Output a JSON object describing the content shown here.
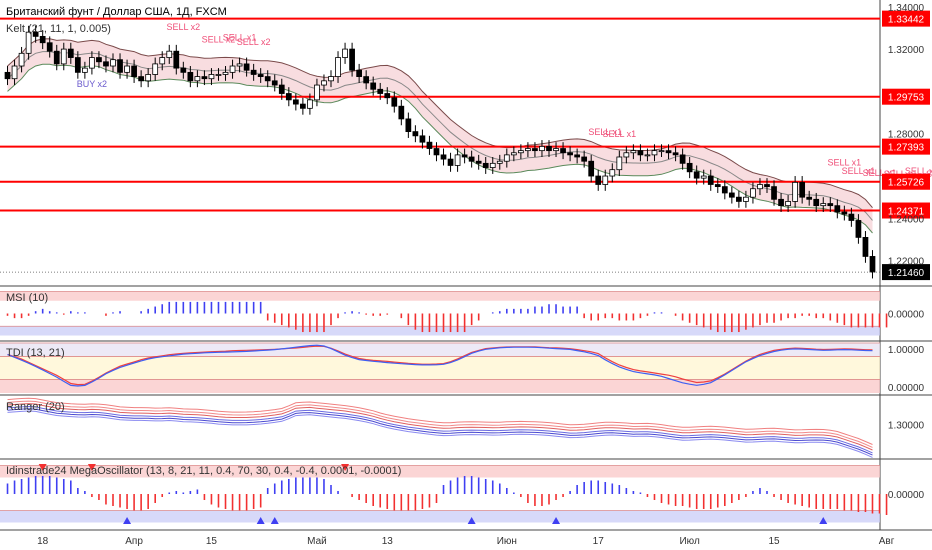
{
  "header": {
    "symbol_title": "Британский фунт / Доллар США, 1Д, FXCM",
    "indicator": "Kelt (21, 11, 1, 0.005)"
  },
  "colors": {
    "up_candle": "#ffffff",
    "down_candle": "#000000",
    "level_line": "#ff0000",
    "price_label_bg": "#000000",
    "signal_sell": "#ef4f78",
    "signal_buy": "#6a5acd",
    "bull_bar": "#3f3ff2",
    "bear_bar": "#f23030",
    "red_zone": "#f9c7c7",
    "blue_zone": "#c9ccf7",
    "yellow_zone": "#fff6d0"
  },
  "time_axis": {
    "labels": [
      {
        "text": "18",
        "bar": 5
      },
      {
        "text": "Апр",
        "bar": 18
      },
      {
        "text": "15",
        "bar": 29
      },
      {
        "text": "Май",
        "bar": 44
      },
      {
        "text": "13",
        "bar": 54
      },
      {
        "text": "Июн",
        "bar": 71
      },
      {
        "text": "17",
        "bar": 84
      },
      {
        "text": "Июл",
        "bar": 97
      },
      {
        "text": "15",
        "bar": 109
      },
      {
        "text": "Авг",
        "bar": 125
      }
    ]
  },
  "chart_data": [
    {
      "type": "candlestick",
      "name": "Британский фунт / Доллар США, 1Д, FXCM",
      "y_range": [
        1.2085,
        1.3432
      ],
      "y_ticks": [
        "1.34000",
        "1.32000",
        "1.28000",
        "1.24000",
        "1.22000"
      ],
      "y_tick_values": [
        1.34,
        1.32,
        1.28,
        1.24,
        1.22
      ],
      "horizontal_levels": [
        {
          "value": 1.3344,
          "label": "1.33442"
        },
        {
          "value": 1.2975,
          "label": "1.29753"
        },
        {
          "value": 1.2739,
          "label": "1.27393"
        },
        {
          "value": 1.2573,
          "label": "1.25726"
        },
        {
          "value": 1.2437,
          "label": "1.24371"
        }
      ],
      "last_price": {
        "value": 1.2146,
        "label": "1.21460"
      },
      "close": [
        1.306,
        1.312,
        1.318,
        1.328,
        1.326,
        1.323,
        1.319,
        1.313,
        1.32,
        1.316,
        1.309,
        1.311,
        1.316,
        1.314,
        1.312,
        1.315,
        1.309,
        1.312,
        1.307,
        1.305,
        1.308,
        1.313,
        1.316,
        1.319,
        1.311,
        1.309,
        1.305,
        1.307,
        1.306,
        1.308,
        1.308,
        1.309,
        1.312,
        1.313,
        1.31,
        1.308,
        1.307,
        1.305,
        1.303,
        1.299,
        1.296,
        1.294,
        1.292,
        1.296,
        1.303,
        1.305,
        1.307,
        1.316,
        1.32,
        1.31,
        1.307,
        1.304,
        1.301,
        1.299,
        1.297,
        1.293,
        1.287,
        1.281,
        1.279,
        1.276,
        1.273,
        1.27,
        1.268,
        1.265,
        1.27,
        1.269,
        1.267,
        1.266,
        1.264,
        1.266,
        1.267,
        1.27,
        1.271,
        1.272,
        1.273,
        1.272,
        1.274,
        1.272,
        1.273,
        1.271,
        1.27,
        1.269,
        1.267,
        1.26,
        1.256,
        1.26,
        1.263,
        1.269,
        1.271,
        1.272,
        1.27,
        1.27,
        1.272,
        1.272,
        1.271,
        1.27,
        1.266,
        1.262,
        1.259,
        1.26,
        1.256,
        1.255,
        1.252,
        1.25,
        1.248,
        1.25,
        1.254,
        1.256,
        1.255,
        1.249,
        1.246,
        1.248,
        1.257,
        1.25,
        1.249,
        1.246,
        1.247,
        1.246,
        1.243,
        1.242,
        1.239,
        1.231,
        1.222,
        1.2146
      ],
      "keltner": {
        "upper_start": 1.329,
        "upper_end": 1.245,
        "middle_start": 1.321,
        "middle_end": 1.236,
        "lower_start": 1.313,
        "lower_end": 1.228
      },
      "signal_labels": [
        {
          "text": "SELL x2",
          "bar": 25,
          "value": 1.329
        },
        {
          "text": "SELL x2",
          "bar": 30,
          "value": 1.323
        },
        {
          "text": "SELL x1",
          "bar": 33,
          "value": 1.324
        },
        {
          "text": "SELL x2",
          "bar": 35,
          "value": 1.322
        },
        {
          "text": "BUY x2",
          "bar": 12,
          "value": 1.302
        },
        {
          "text": "SELL x1",
          "bar": 85,
          "value": 1.2795
        },
        {
          "text": "SELL x1",
          "bar": 87,
          "value": 1.2785
        },
        {
          "text": "SELL x1",
          "bar": 119,
          "value": 1.265
        },
        {
          "text": "SELL x1",
          "bar": 121,
          "value": 1.261
        },
        {
          "text": "SELL x1",
          "bar": 124,
          "value": 1.26
        },
        {
          "text": "SELL x1",
          "bar": 127,
          "value": 1.2595
        },
        {
          "text": "SELL x1",
          "bar": 130,
          "value": 1.261
        },
        {
          "text": "SELL x1",
          "bar": 133,
          "value": 1.2595
        },
        {
          "text": "SELL x1",
          "bar": 137,
          "value": 1.259
        }
      ]
    },
    {
      "type": "histogram",
      "name": "MSI (10)",
      "label": "MSI (10)",
      "y_range": [
        -1.1,
        1.1
      ],
      "y_ticks": [
        "0.00000"
      ],
      "y_tick_values": [
        0
      ],
      "zones": {
        "upper": [
          0.55,
          0.95
        ],
        "lower": [
          -0.95,
          -0.55
        ]
      },
      "values": [
        -0.1,
        -0.2,
        -0.2,
        -0.1,
        0.1,
        0.2,
        0.1,
        0.05,
        -0.05,
        0.1,
        0.05,
        0.05,
        0.0,
        0.0,
        -0.1,
        0.05,
        0.1,
        0.0,
        0.0,
        0.1,
        0.2,
        0.3,
        0.4,
        0.5,
        0.5,
        0.5,
        0.5,
        0.5,
        0.5,
        0.5,
        0.5,
        0.5,
        0.5,
        0.5,
        0.5,
        0.5,
        0.5,
        -0.3,
        -0.4,
        -0.5,
        -0.6,
        -0.7,
        -0.8,
        -0.8,
        -0.8,
        -0.8,
        -0.5,
        -0.2,
        0.05,
        0.1,
        0.05,
        -0.05,
        -0.1,
        -0.1,
        -0.05,
        0.0,
        -0.2,
        -0.5,
        -0.7,
        -0.8,
        -0.8,
        -0.8,
        -0.8,
        -0.8,
        -0.8,
        -0.8,
        -0.5,
        -0.3,
        0.0,
        0.05,
        0.1,
        0.2,
        0.2,
        0.2,
        0.2,
        0.3,
        0.3,
        0.4,
        0.4,
        0.3,
        0.3,
        0.3,
        -0.2,
        -0.3,
        -0.3,
        -0.2,
        -0.2,
        -0.3,
        -0.3,
        -0.3,
        -0.2,
        -0.1,
        0.05,
        0.05,
        0.0,
        -0.1,
        -0.3,
        -0.4,
        -0.5,
        -0.6,
        -0.7,
        -0.8,
        -0.8,
        -0.8,
        -0.8,
        -0.7,
        -0.6,
        -0.5,
        -0.4,
        -0.4,
        -0.3,
        -0.2,
        -0.2,
        -0.1,
        -0.1,
        -0.2,
        -0.2,
        -0.3,
        -0.4,
        -0.5,
        -0.6,
        -0.6,
        -0.6,
        -0.6,
        -0.6,
        -0.6
      ]
    },
    {
      "type": "line",
      "name": "TDI (13, 21)",
      "label": "TDI (13, 21)",
      "y_range": [
        -0.15,
        1.15
      ],
      "y_ticks": [
        "1.00000",
        "0.00000"
      ],
      "y_tick_values": [
        1,
        0
      ],
      "zones": {
        "upper": [
          0.8,
          1.15
        ],
        "middle": [
          0.2,
          0.8
        ],
        "lower": [
          -0.15,
          0.2
        ]
      },
      "series": [
        {
          "name": "",
          "color": "#ef4040",
          "values": [
            0.85,
            0.75,
            0.6,
            0.45,
            0.3,
            0.1,
            0.05,
            0.2,
            0.4,
            0.55,
            0.65,
            0.75,
            0.8,
            0.85,
            0.88,
            0.9,
            0.92,
            0.93,
            0.95,
            0.96,
            0.97,
            0.98,
            1.0,
            1.02,
            1.05,
            1.08,
            1.0,
            0.85,
            0.75,
            0.7,
            0.68,
            0.65,
            0.62,
            0.6,
            0.6,
            0.62,
            0.75,
            0.9,
            1.0,
            1.03,
            1.05,
            1.05,
            1.05,
            1.03,
            1.02,
            1.0,
            0.95,
            0.9,
            0.7,
            0.55,
            0.45,
            0.4,
            0.35,
            0.3,
            0.2,
            0.12,
            0.15,
            0.3,
            0.5,
            0.7,
            0.85,
            0.95,
            1.0,
            1.02,
            1.0,
            0.98,
            0.99,
            1.0,
            0.98,
            0.97
          ]
        },
        {
          "name": "",
          "color": "#3f5ff2",
          "values": [
            0.85,
            0.72,
            0.58,
            0.42,
            0.25,
            0.05,
            0.02,
            0.18,
            0.38,
            0.52,
            0.62,
            0.72,
            0.78,
            0.82,
            0.86,
            0.88,
            0.9,
            0.91,
            0.92,
            0.93,
            0.95,
            0.97,
            1.0,
            1.04,
            1.08,
            1.1,
            0.98,
            0.82,
            0.72,
            0.68,
            0.65,
            0.62,
            0.6,
            0.58,
            0.58,
            0.6,
            0.72,
            0.88,
            0.98,
            1.02,
            1.04,
            1.04,
            1.04,
            1.02,
            1.0,
            0.98,
            0.92,
            0.85,
            0.65,
            0.5,
            0.4,
            0.35,
            0.3,
            0.2,
            0.1,
            0.05,
            0.1,
            0.28,
            0.48,
            0.68,
            0.82,
            0.92,
            0.98,
            1.0,
            0.98,
            0.96,
            0.97,
            0.98,
            0.96,
            0.95
          ]
        }
      ]
    },
    {
      "type": "line",
      "name": "Ranger (20)",
      "label": "Ranger (20)",
      "y_range": [
        1.195,
        1.385
      ],
      "y_ticks": [
        "1.30000"
      ],
      "y_tick_values": [
        1.3
      ],
      "series_count": 6,
      "centerline": [
        1.355,
        1.358,
        1.36,
        1.352,
        1.345,
        1.342,
        1.34,
        1.342,
        1.338,
        1.332,
        1.33,
        1.33,
        1.328,
        1.33,
        1.326,
        1.325,
        1.322,
        1.318,
        1.316,
        1.316,
        1.318,
        1.322,
        1.328,
        1.345,
        1.348,
        1.344,
        1.34,
        1.336,
        1.33,
        1.322,
        1.31,
        1.302,
        1.295,
        1.29,
        1.285,
        1.282,
        1.285,
        1.286,
        1.285,
        1.284,
        1.286,
        1.287,
        1.286,
        1.284,
        1.28,
        1.276,
        1.278,
        1.282,
        1.285,
        1.283,
        1.28,
        1.281,
        1.278,
        1.272,
        1.268,
        1.27,
        1.272,
        1.27,
        1.266,
        1.262,
        1.264,
        1.266,
        1.263,
        1.26,
        1.262,
        1.262,
        1.258,
        1.245,
        1.232,
        1.215
      ],
      "band_offsets": [
        0.022,
        0.013,
        0.005,
        -0.004,
        -0.011,
        -0.018
      ]
    },
    {
      "type": "histogram",
      "name": "Idinstrade24 MegaOscillator",
      "label": "Idinstrade24 MegaOscillator (13, 8, 21, 11, 0.4, 70, 30, 0.4, -0.4, 0.0001, -0.0001)",
      "y_range": [
        -1.1,
        1.1
      ],
      "y_ticks": [
        "0.00000"
      ],
      "y_tick_values": [
        0
      ],
      "zones": {
        "upper": [
          0.55,
          0.95
        ],
        "lower": [
          -0.95,
          -0.55
        ]
      },
      "values": [
        0.35,
        0.45,
        0.5,
        0.55,
        0.6,
        0.6,
        0.6,
        0.55,
        0.5,
        0.45,
        0.2,
        0.1,
        -0.1,
        -0.2,
        -0.35,
        -0.4,
        -0.45,
        -0.5,
        -0.55,
        -0.55,
        -0.5,
        -0.3,
        -0.1,
        0.05,
        0.1,
        0.05,
        0.1,
        0.15,
        -0.2,
        -0.35,
        -0.45,
        -0.5,
        -0.55,
        -0.55,
        -0.55,
        -0.5,
        -0.45,
        0.2,
        0.35,
        0.45,
        0.5,
        0.55,
        0.55,
        0.55,
        0.55,
        0.5,
        0.3,
        0.1,
        0.0,
        -0.1,
        -0.2,
        -0.3,
        -0.4,
        -0.45,
        -0.5,
        -0.55,
        -0.55,
        -0.55,
        -0.55,
        -0.5,
        -0.45,
        -0.3,
        0.3,
        0.45,
        0.55,
        0.6,
        0.6,
        0.55,
        0.5,
        0.45,
        0.35,
        0.2,
        0.05,
        -0.1,
        -0.3,
        -0.4,
        -0.4,
        -0.35,
        -0.2,
        -0.1,
        0.1,
        0.3,
        0.4,
        0.45,
        0.45,
        0.4,
        0.35,
        0.3,
        0.2,
        0.1,
        0.05,
        -0.1,
        -0.2,
        -0.3,
        -0.35,
        -0.4,
        -0.4,
        -0.45,
        -0.5,
        -0.5,
        -0.5,
        -0.45,
        -0.4,
        -0.3,
        -0.2,
        -0.1,
        0.1,
        0.2,
        0.1,
        -0.1,
        -0.2,
        -0.3,
        -0.35,
        -0.4,
        -0.45,
        -0.5,
        -0.5,
        -0.5,
        -0.5,
        -0.55,
        -0.55,
        -0.6,
        -0.6,
        -0.65,
        -0.65,
        -0.7
      ],
      "triangle_markers": [
        {
          "bar": 5,
          "dir": "down"
        },
        {
          "bar": 12,
          "dir": "down"
        },
        {
          "bar": 17,
          "dir": "up"
        },
        {
          "bar": 36,
          "dir": "up"
        },
        {
          "bar": 38,
          "dir": "up"
        },
        {
          "bar": 48,
          "dir": "down"
        },
        {
          "bar": 66,
          "dir": "up"
        },
        {
          "bar": 78,
          "dir": "up"
        },
        {
          "bar": 116,
          "dir": "up"
        },
        {
          "bar": 137,
          "dir": "up"
        },
        {
          "bar": 138,
          "dir": "down"
        },
        {
          "bar": 139,
          "dir": "up"
        }
      ]
    }
  ]
}
